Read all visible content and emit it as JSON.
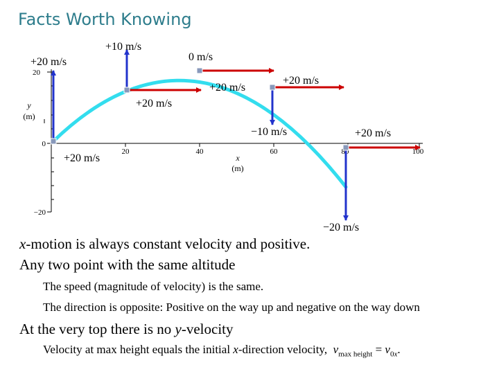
{
  "title": "Facts Worth Knowing",
  "graph": {
    "y_label": "y",
    "y_unit": "(m)",
    "x_label": "x",
    "x_unit": "(m)",
    "y_ticks": [
      "20",
      "0",
      "−20"
    ],
    "x_ticks": [
      "20",
      "40",
      "60",
      "80",
      "100"
    ],
    "velocity_labels": {
      "start_x": "+20 m/s",
      "start_y": "+20 m/s",
      "p1_x": "+20 m/s",
      "p1_y": "+10 m/s",
      "top_x": "+20 m/s",
      "top_y": "0 m/s",
      "p3_x": "+20 m/s",
      "p3_y": "−10 m/s",
      "p4_x": "+20 m/s",
      "p4_y": "−20 m/s"
    },
    "colors": {
      "trajectory": "#33ddee",
      "horizontal_arrow": "#cc0000",
      "vertical_arrow": "#2233cc",
      "point": "#8899bb"
    }
  },
  "text": {
    "line1_rest": "-motion is always constant velocity and positive.",
    "line1_var": "x",
    "line2": "Any two point with the same altitude",
    "line3": "The speed (magnitude of velocity) is the same.",
    "line4": "The direction is opposite: Positive on the way up and negative on the way down",
    "line5_a": "At the very top there is no ",
    "line5_var": "y",
    "line5_b": "-velocity",
    "line6_a": "Velocity at max height equals the initial ",
    "line6_var": "x",
    "line6_b": "-direction velocity,",
    "line6_v": "v",
    "line6_sub": "max height",
    "line6_eq": " = ",
    "line6_v0": "v",
    "line6_sub0": "0",
    "line6_subx": "x",
    "line6_end": "."
  }
}
